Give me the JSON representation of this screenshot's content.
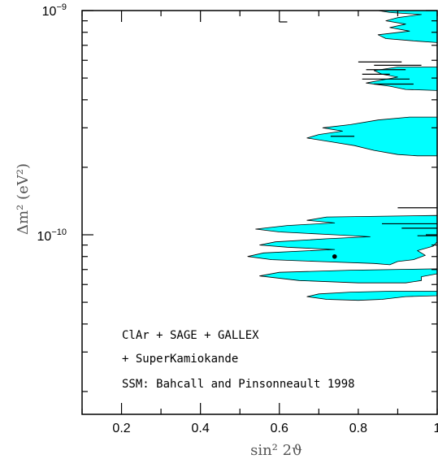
{
  "chart_data": {
    "type": "contour",
    "title": "",
    "xlabel": "sin² 2ϑ",
    "ylabel": "Δm²  (eV²)",
    "xscale": "linear",
    "yscale": "log",
    "xlim": [
      0.1,
      1.0
    ],
    "ylim": [
      1.8e-11,
      1e-09
    ],
    "x_ticks": [
      0.2,
      0.4,
      0.6,
      0.8,
      1.0
    ],
    "x_tick_labels": [
      "0.2",
      "0.4",
      "0.6",
      "0.8",
      "1"
    ],
    "y_tick_labels": [
      {
        "value": 1e-10,
        "mantissa": "10",
        "exp": "−10"
      },
      {
        "value": 1e-09,
        "mantissa": "10",
        "exp": "−9"
      }
    ],
    "grid": false,
    "fill_color": "#00ffff",
    "annotations": [
      "ClAr + SAGE + GALLEX",
      "+ SuperKamiokande",
      "SSM: Bahcall and Pinsonneault 1998"
    ],
    "best_fit": {
      "x": 0.74,
      "y": 8e-11
    },
    "regions": [
      {
        "name": "region-a",
        "points": [
          [
            1.0,
            1e-09
          ],
          [
            0.85,
            1e-09
          ],
          [
            0.88,
            9.8e-10
          ],
          [
            0.96,
            9.6e-10
          ],
          [
            0.9,
            9.3e-10
          ],
          [
            0.87,
            9e-10
          ],
          [
            0.92,
            8.7e-10
          ],
          [
            0.88,
            8.4e-10
          ],
          [
            0.93,
            8.1e-10
          ],
          [
            0.85,
            7.8e-10
          ],
          [
            0.87,
            7.5e-10
          ],
          [
            0.95,
            7.3e-10
          ],
          [
            1.0,
            7.2e-10
          ]
        ]
      },
      {
        "name": "region-b",
        "points": [
          [
            1.0,
            5.6e-10
          ],
          [
            0.9,
            5.6e-10
          ],
          [
            0.84,
            5.4e-10
          ],
          [
            0.86,
            5.2e-10
          ],
          [
            0.9,
            5.05e-10
          ],
          [
            0.86,
            4.9e-10
          ],
          [
            0.82,
            4.75e-10
          ],
          [
            0.88,
            4.6e-10
          ],
          [
            0.92,
            4.45e-10
          ],
          [
            1.0,
            4.4e-10
          ]
        ]
      },
      {
        "name": "region-c",
        "points": [
          [
            1.0,
            3.35e-10
          ],
          [
            0.93,
            3.35e-10
          ],
          [
            0.85,
            3.25e-10
          ],
          [
            0.78,
            3.1e-10
          ],
          [
            0.71,
            3e-10
          ],
          [
            0.76,
            2.9e-10
          ],
          [
            0.7,
            2.8e-10
          ],
          [
            0.67,
            2.7e-10
          ],
          [
            0.73,
            2.6e-10
          ],
          [
            0.79,
            2.5e-10
          ],
          [
            0.84,
            2.38e-10
          ],
          [
            0.9,
            2.28e-10
          ],
          [
            0.95,
            2.25e-10
          ],
          [
            1.0,
            2.25e-10
          ]
        ]
      },
      {
        "name": "region-d",
        "points": [
          [
            1.0,
            1.22e-10
          ],
          [
            0.72,
            1.2e-10
          ],
          [
            0.67,
            1.16e-10
          ],
          [
            0.74,
            1.13e-10
          ],
          [
            0.62,
            1.1e-10
          ],
          [
            0.54,
            1.06e-10
          ],
          [
            0.6,
            1.03e-10
          ],
          [
            0.74,
            1e-10
          ],
          [
            0.83,
            9.8e-11
          ],
          [
            0.72,
            9.6e-11
          ],
          [
            0.59,
            9.3e-11
          ],
          [
            0.55,
            9e-11
          ],
          [
            0.62,
            8.8e-11
          ],
          [
            0.74,
            8.6e-11
          ],
          [
            0.56,
            8.3e-11
          ],
          [
            0.52,
            8e-11
          ],
          [
            0.58,
            7.75e-11
          ],
          [
            0.7,
            7.6e-11
          ],
          [
            0.84,
            7.45e-11
          ],
          [
            0.88,
            7.35e-11
          ],
          [
            0.9,
            7.6e-11
          ],
          [
            0.94,
            7.75e-11
          ],
          [
            0.97,
            8.1e-11
          ],
          [
            0.95,
            8.5e-11
          ],
          [
            0.99,
            8.9e-11
          ],
          [
            1.0,
            9.3e-11
          ]
        ]
      },
      {
        "name": "region-e",
        "points": [
          [
            1.0,
            7.05e-11
          ],
          [
            0.78,
            6.95e-11
          ],
          [
            0.6,
            6.8e-11
          ],
          [
            0.55,
            6.55e-11
          ],
          [
            0.65,
            6.25e-11
          ],
          [
            0.8,
            6.1e-11
          ],
          [
            0.92,
            6.1e-11
          ],
          [
            0.96,
            6.25e-11
          ],
          [
            0.96,
            6.5e-11
          ],
          [
            1.0,
            6.7e-11
          ]
        ]
      },
      {
        "name": "region-f",
        "points": [
          [
            1.0,
            5.6e-11
          ],
          [
            0.88,
            5.6e-11
          ],
          [
            0.78,
            5.55e-11
          ],
          [
            0.7,
            5.45e-11
          ],
          [
            0.67,
            5.3e-11
          ],
          [
            0.72,
            5.15e-11
          ],
          [
            0.8,
            5.1e-11
          ],
          [
            0.86,
            5.15e-11
          ],
          [
            0.92,
            5.3e-11
          ],
          [
            1.0,
            5.35e-11
          ]
        ]
      }
    ],
    "segments": [
      {
        "x1": 0.6,
        "x2": 0.62,
        "y": 8.9e-10
      },
      {
        "x1": 0.8,
        "x2": 0.91,
        "y": 5.9e-10
      },
      {
        "x1": 0.84,
        "x2": 0.96,
        "y": 5.7e-10
      },
      {
        "x1": 0.82,
        "x2": 0.92,
        "y": 5.45e-10
      },
      {
        "x1": 0.81,
        "x2": 0.88,
        "y": 5.2e-10
      },
      {
        "x1": 0.81,
        "x2": 0.93,
        "y": 4.95e-10
      },
      {
        "x1": 0.84,
        "x2": 0.94,
        "y": 4.7e-10
      },
      {
        "x1": 0.73,
        "x2": 0.79,
        "y": 2.75e-10
      },
      {
        "x1": 0.9,
        "x2": 1.0,
        "y": 1.32e-10
      },
      {
        "x1": 0.86,
        "x2": 1.0,
        "y": 1.12e-10
      },
      {
        "x1": 0.91,
        "x2": 1.0,
        "y": 1.07e-10
      },
      {
        "x1": 0.95,
        "x2": 1.0,
        "y": 9.9e-11
      }
    ]
  }
}
